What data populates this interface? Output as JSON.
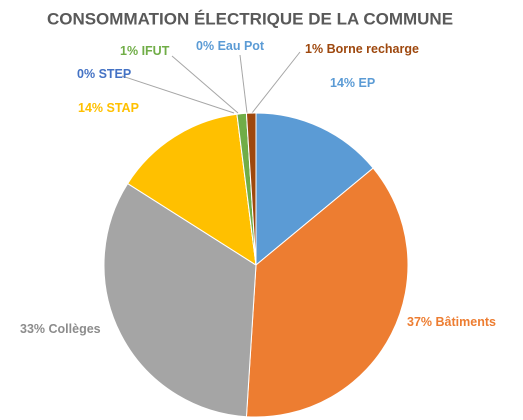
{
  "chart_data": {
    "type": "pie",
    "title": "CONSOMMATION ÉLECTRIQUE DE LA COMMUNE",
    "categories": [
      "EP",
      "Bâtiments",
      "Collèges",
      "STAP",
      "STEP",
      "IFUT",
      "Eau Pot",
      "Borne recharge"
    ],
    "values": [
      14,
      37,
      33,
      14,
      0,
      1,
      0,
      1
    ],
    "value_labels": [
      "14%",
      "37%",
      "33%",
      "14%",
      "0%",
      "1%",
      "0%",
      "1%"
    ],
    "colors": [
      "#5b9bd5",
      "#ed7d31",
      "#a5a5a5",
      "#ffc000",
      "#4472c4",
      "#70ad47",
      "#5b9bd5",
      "#9e480e"
    ]
  }
}
